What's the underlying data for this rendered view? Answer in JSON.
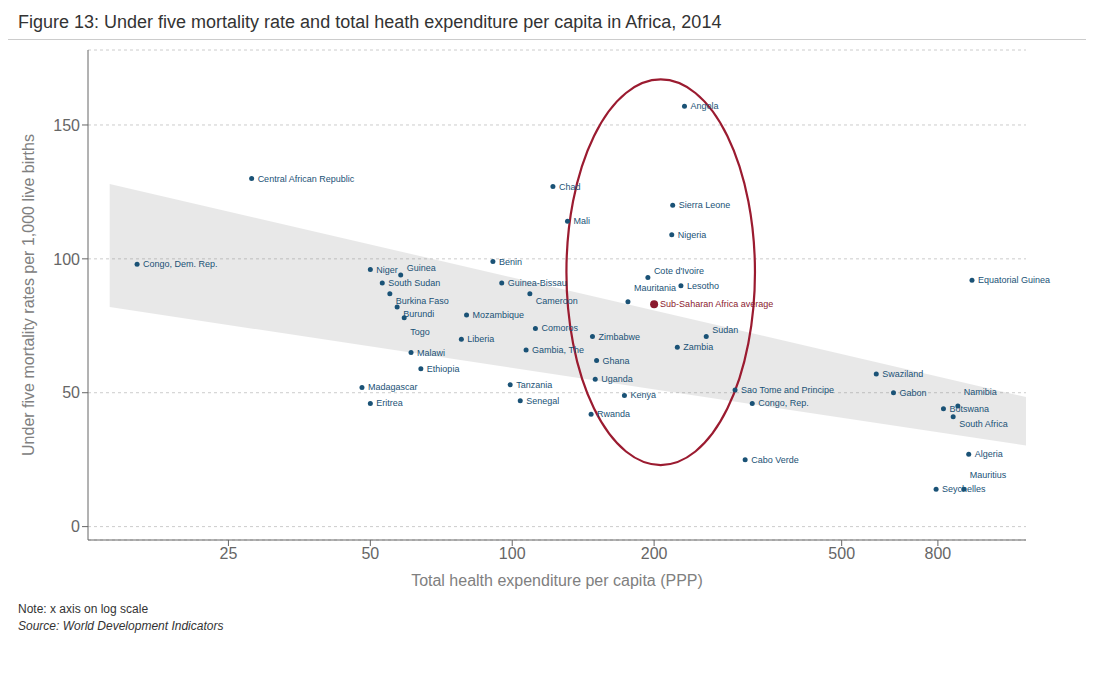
{
  "chart_data": {
    "type": "scatter",
    "title": "Figure 13: Under five mortality rate and total heath expenditure per capita in Africa, 2014",
    "x_label": "Total health expenditure per capita (PPP)",
    "y_label": "Under five mortality rates per 1,000 live births",
    "note": "Note: x axis on log scale",
    "source": "Source: World Development Indicators",
    "log": "x",
    "grid": true,
    "xlim": [
      12.589254117941673,
      1230.268770812381
    ],
    "ylim": [
      -5,
      178
    ],
    "xticks": [
      25,
      50,
      100,
      200,
      500,
      800
    ],
    "yticks": [
      0,
      50,
      100,
      150
    ],
    "color": "#1a5276",
    "points": [
      {
        "name": "Congo, Dem. Rep.",
        "x": 16,
        "y": 98
      },
      {
        "name": "Central African Republic",
        "x": 28,
        "y": 130
      },
      {
        "name": "Niger",
        "x": 50,
        "y": 96
      },
      {
        "name": "South Sudan",
        "x": 53,
        "y": 91
      },
      {
        "name": "Burkina Faso",
        "x": 55,
        "y": 87
      },
      {
        "name": "Guinea",
        "x": 58,
        "y": 94
      },
      {
        "name": "Burundi",
        "x": 57,
        "y": 82
      },
      {
        "name": "Togo",
        "x": 59,
        "y": 78
      },
      {
        "name": "Madagascar",
        "x": 48,
        "y": 52
      },
      {
        "name": "Eritrea",
        "x": 50,
        "y": 46
      },
      {
        "name": "Ethiopia",
        "x": 64,
        "y": 59
      },
      {
        "name": "Malawi",
        "x": 61,
        "y": 65
      },
      {
        "name": "Liberia",
        "x": 78,
        "y": 70
      },
      {
        "name": "Mozambique",
        "x": 80,
        "y": 79
      },
      {
        "name": "Benin",
        "x": 91,
        "y": 99
      },
      {
        "name": "Guinea-Bissau",
        "x": 95,
        "y": 91
      },
      {
        "name": "Cameroon",
        "x": 109,
        "y": 87
      },
      {
        "name": "Comoros",
        "x": 112,
        "y": 74
      },
      {
        "name": "Gambia, The",
        "x": 107,
        "y": 66
      },
      {
        "name": "Tanzania",
        "x": 99,
        "y": 53
      },
      {
        "name": "Senegal",
        "x": 104,
        "y": 47
      },
      {
        "name": "Chad",
        "x": 122,
        "y": 127
      },
      {
        "name": "Mali",
        "x": 131,
        "y": 114
      },
      {
        "name": "Zimbabwe",
        "x": 148,
        "y": 71
      },
      {
        "name": "Ghana",
        "x": 151,
        "y": 62
      },
      {
        "name": "Uganda",
        "x": 150,
        "y": 55
      },
      {
        "name": "Rwanda",
        "x": 147,
        "y": 42
      },
      {
        "name": "Kenya",
        "x": 173,
        "y": 49
      },
      {
        "name": "Mauritania",
        "x": 176,
        "y": 84
      },
      {
        "name": "Cote d'Ivoire",
        "x": 194,
        "y": 93
      },
      {
        "name": "Lesotho",
        "x": 228,
        "y": 90
      },
      {
        "name": "Nigeria",
        "x": 218,
        "y": 109
      },
      {
        "name": "Sierra Leone",
        "x": 219,
        "y": 120
      },
      {
        "name": "Angola",
        "x": 232,
        "y": 157
      },
      {
        "name": "Zambia",
        "x": 224,
        "y": 67
      },
      {
        "name": "Sudan",
        "x": 258,
        "y": 71
      },
      {
        "name": "Sao Tome and Principe",
        "x": 297,
        "y": 51
      },
      {
        "name": "Congo, Rep.",
        "x": 323,
        "y": 46
      },
      {
        "name": "Cabo Verde",
        "x": 312,
        "y": 25
      },
      {
        "name": "Equatorial Guinea",
        "x": 945,
        "y": 92
      },
      {
        "name": "Swaziland",
        "x": 592,
        "y": 57
      },
      {
        "name": "Gabon",
        "x": 644,
        "y": 50
      },
      {
        "name": "Botswana",
        "x": 822,
        "y": 44
      },
      {
        "name": "South Africa",
        "x": 862,
        "y": 41
      },
      {
        "name": "Namibia",
        "x": 882,
        "y": 45
      },
      {
        "name": "Algeria",
        "x": 930,
        "y": 27
      },
      {
        "name": "Seychelles",
        "x": 793,
        "y": 14
      },
      {
        "name": "Mauritius",
        "x": 908,
        "y": 14
      }
    ],
    "highlight": {
      "name": "Sub-Saharan Africa average",
      "x": 200,
      "y": 83,
      "color": "#8b1a2e"
    },
    "band": {
      "x": [
        13.995874,
        1258.9254117941673
      ],
      "lower": [
        82,
        30
      ],
      "upper": [
        128,
        48
      ],
      "color": "#808080"
    },
    "ellipse": {
      "x": [
        130.31668,
        327.34075
      ],
      "y": [
        23,
        167
      ],
      "color": "#9b1b30"
    }
  }
}
